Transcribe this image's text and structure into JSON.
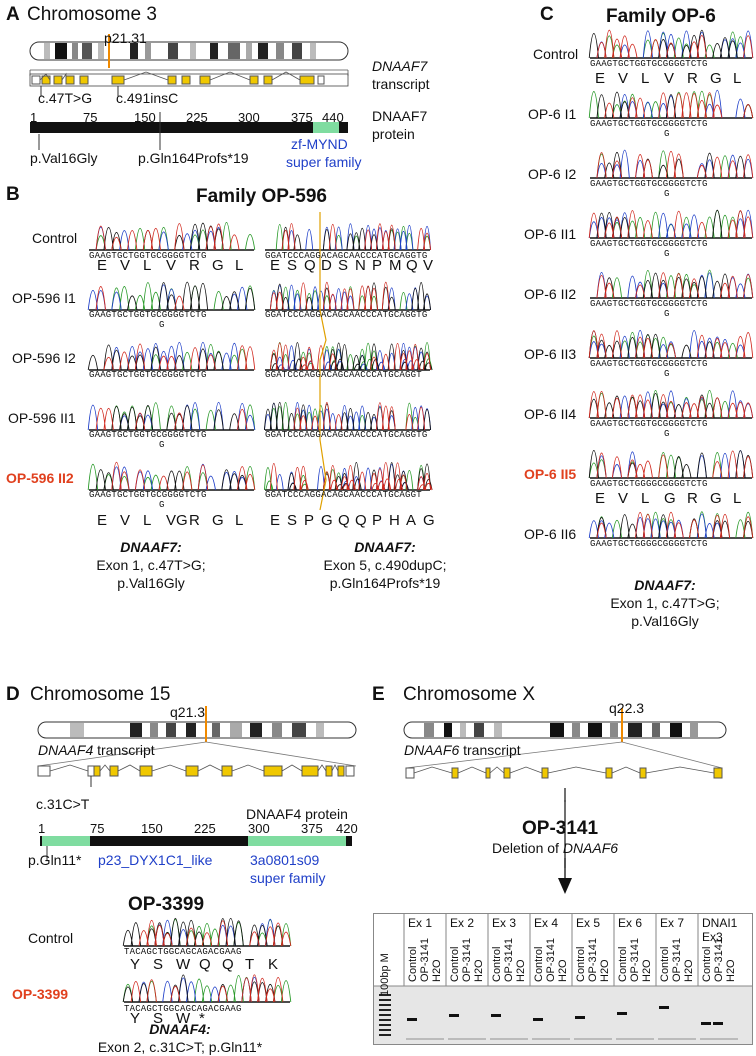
{
  "panels": {
    "A": {
      "letter": "A",
      "title": "Chromosome 3",
      "band": "p21.31",
      "transcript_gene": "DNAAF7",
      "transcript_word": "transcript",
      "protein_gene": "DNAAF7",
      "protein_word": "protein",
      "ticks": [
        "1",
        "75",
        "150",
        "225",
        "300",
        "375",
        "440"
      ],
      "variant1_dna": "c.47T>G",
      "variant2_dna": "c.491insC",
      "variant1_prot": "p.Val16Gly",
      "variant2_prot": "p.Gln164Profs*19",
      "domain_line1": "zf-MYND",
      "domain_line2": "super family",
      "colors": {
        "exon": "#f0c800",
        "domain": "#7fdca0",
        "marker": "#f08a00",
        "domain_text": "#1f3fc8"
      }
    },
    "B": {
      "letter": "B",
      "title": "Family OP-596",
      "rows": [
        "Control",
        "OP-596 I1",
        "OP-596 I2",
        "OP-596 II1",
        "OP-596 II2"
      ],
      "left_seq": "GAAGTGCTGGTGCGGGGTCTG",
      "left_alt_base": "G",
      "right_seq_ref": "GGATCCCAGGACAGCAACCCATGCAGGTG",
      "right_seq_mut": "GGATCCCAGGACAGCAACCCATGCAGGT",
      "left_aa_top": [
        "E",
        "V",
        "L",
        "V",
        "R",
        "G",
        "L"
      ],
      "right_aa_top": [
        "E",
        "S",
        "Q",
        "D",
        "S",
        "N",
        "P",
        "M",
        "Q",
        "V"
      ],
      "left_aa_bottom": [
        "E",
        "V",
        "L",
        "VG",
        "R",
        "G",
        "L"
      ],
      "right_aa_bottom": [
        "E",
        "S",
        "P",
        "G",
        "Q",
        "Q",
        "P",
        "H",
        "A",
        "G"
      ],
      "left_caption": [
        "DNAAF7:",
        "Exon 1, c.47T>G;",
        "p.Val16Gly"
      ],
      "right_caption": [
        "DNAAF7:",
        "Exon 5, c.490dupC;",
        "p.Gln164Profs*19"
      ]
    },
    "C": {
      "letter": "C",
      "title": "Family OP-6",
      "rows": [
        "Control",
        "OP-6 I1",
        "OP-6 I2",
        "OP-6 II1",
        "OP-6 II2",
        "OP-6 II3",
        "OP-6 II4",
        "OP-6 II5",
        "OP-6 II6"
      ],
      "seq": "GAAGTGCTGGTGCGGGGTCTG",
      "seq_mut": "GAAGTGCTGGGGCGGGGTCTG",
      "alt_base": "G",
      "aa_top": [
        "E",
        "V",
        "L",
        "V",
        "R",
        "G",
        "L"
      ],
      "aa_bottom": [
        "E",
        "V",
        "L",
        "G",
        "R",
        "G",
        "L"
      ],
      "caption": [
        "DNAAF7:",
        "Exon 1, c.47T>G;",
        "p.Val16Gly"
      ]
    },
    "D": {
      "letter": "D",
      "title": "Chromosome 15",
      "band": "q21.3",
      "transcript_gene": "DNAAF4",
      "transcript_word": "transcript",
      "variant_dna": "c.31C>T",
      "protein_label": "DNAAF4 protein",
      "ticks": [
        "1",
        "75",
        "150",
        "225",
        "300",
        "375",
        "420"
      ],
      "variant_prot": "p.Gln11*",
      "domain1": "p23_DYX1C1_like",
      "domain2_line1": "3a0801s09",
      "domain2_line2": "super family",
      "subtitle": "OP-3399",
      "rows": [
        "Control",
        "OP-3399"
      ],
      "seq": "TACAGCTGGCAGCAGACGAAG",
      "aa_top": [
        "Y",
        "S",
        "W",
        "Q",
        "Q",
        "T",
        "K"
      ],
      "aa_bottom": [
        "Y",
        "S",
        "W",
        "*"
      ],
      "caption_gene": "DNAAF4",
      "caption_rest": "Exon 2, c.31C>T; p.Gln11*"
    },
    "E": {
      "letter": "E",
      "title": "Chromosome X",
      "band": "q22.3",
      "transcript_gene": "DNAAF6",
      "transcript_word": "transcript",
      "patient": "OP-3141",
      "deletion_text": "Deletion of",
      "deletion_gene": "DNAAF6",
      "gel_headers": [
        "Ex 1",
        "Ex 2",
        "Ex 3",
        "Ex 4",
        "Ex 5",
        "Ex 6",
        "Ex 7",
        "DNAI1"
      ],
      "gel_header_extra": "Ex3",
      "ladder_label": "100bp M",
      "lane_labels": [
        "Control",
        "OP-3141",
        "H2O"
      ]
    }
  }
}
